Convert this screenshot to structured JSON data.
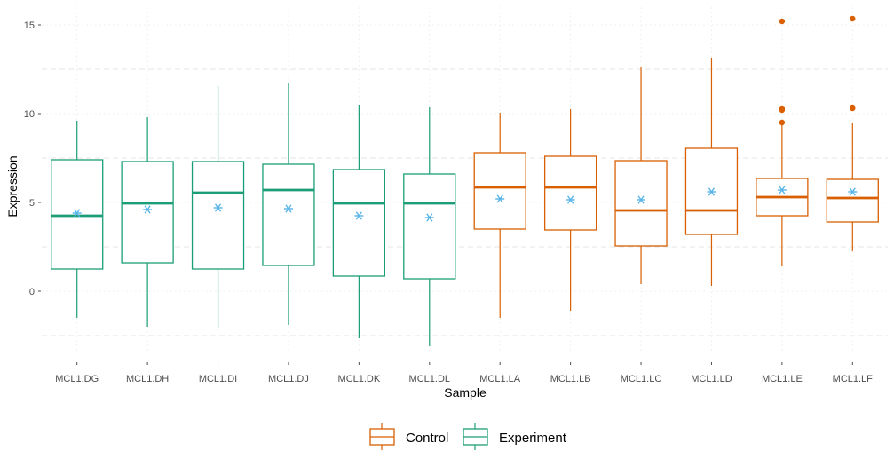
{
  "chart_data": {
    "type": "boxplot",
    "xlabel": "Sample",
    "ylabel": "Expression",
    "ylim": [
      -3.5,
      16
    ],
    "yticks": [
      0,
      5,
      10,
      15
    ],
    "grid": true,
    "legend_position": "bottom",
    "legend": [
      {
        "name": "Control",
        "color": "#D95F02"
      },
      {
        "name": "Experiment",
        "color": "#1B9E77"
      }
    ],
    "mean_marker_color": "#56B4E9",
    "mean_marker_symbol": "*",
    "categories": [
      "MCL1.DG",
      "MCL1.DH",
      "MCL1.DI",
      "MCL1.DJ",
      "MCL1.DK",
      "MCL1.DL",
      "MCL1.LA",
      "MCL1.LB",
      "MCL1.LC",
      "MCL1.LD",
      "MCL1.LE",
      "MCL1.LF"
    ],
    "boxes": [
      {
        "sample": "MCL1.DG",
        "group": "Experiment",
        "whisker_low": -1.5,
        "q1": 1.25,
        "median": 4.25,
        "q3": 7.4,
        "whisker_high": 9.6,
        "mean": 4.4,
        "outliers": []
      },
      {
        "sample": "MCL1.DH",
        "group": "Experiment",
        "whisker_low": -2.0,
        "q1": 1.6,
        "median": 4.95,
        "q3": 7.3,
        "whisker_high": 9.8,
        "mean": 4.6,
        "outliers": []
      },
      {
        "sample": "MCL1.DI",
        "group": "Experiment",
        "whisker_low": -2.05,
        "q1": 1.25,
        "median": 5.55,
        "q3": 7.3,
        "whisker_high": 11.55,
        "mean": 4.7,
        "outliers": []
      },
      {
        "sample": "MCL1.DJ",
        "group": "Experiment",
        "whisker_low": -1.9,
        "q1": 1.45,
        "median": 5.7,
        "q3": 7.15,
        "whisker_high": 11.7,
        "mean": 4.65,
        "outliers": []
      },
      {
        "sample": "MCL1.DK",
        "group": "Experiment",
        "whisker_low": -2.65,
        "q1": 0.85,
        "median": 4.95,
        "q3": 6.85,
        "whisker_high": 10.5,
        "mean": 4.25,
        "outliers": []
      },
      {
        "sample": "MCL1.DL",
        "group": "Experiment",
        "whisker_low": -3.1,
        "q1": 0.7,
        "median": 4.95,
        "q3": 6.6,
        "whisker_high": 10.4,
        "mean": 4.15,
        "outliers": []
      },
      {
        "sample": "MCL1.LA",
        "group": "Control",
        "whisker_low": -1.5,
        "q1": 3.5,
        "median": 5.85,
        "q3": 7.8,
        "whisker_high": 10.05,
        "mean": 5.2,
        "outliers": []
      },
      {
        "sample": "MCL1.LB",
        "group": "Control",
        "whisker_low": -1.1,
        "q1": 3.45,
        "median": 5.85,
        "q3": 7.6,
        "whisker_high": 10.25,
        "mean": 5.15,
        "outliers": []
      },
      {
        "sample": "MCL1.LC",
        "group": "Control",
        "whisker_low": 0.4,
        "q1": 2.55,
        "median": 4.55,
        "q3": 7.35,
        "whisker_high": 12.65,
        "mean": 5.15,
        "outliers": []
      },
      {
        "sample": "MCL1.LD",
        "group": "Control",
        "whisker_low": 0.3,
        "q1": 3.2,
        "median": 4.55,
        "q3": 8.05,
        "whisker_high": 13.15,
        "mean": 5.6,
        "outliers": []
      },
      {
        "sample": "MCL1.LE",
        "group": "Control",
        "whisker_low": 1.4,
        "q1": 4.25,
        "median": 5.3,
        "q3": 6.35,
        "whisker_high": 9.5,
        "mean": 5.7,
        "outliers": [
          9.5,
          10.2,
          10.3,
          15.2
        ]
      },
      {
        "sample": "MCL1.LF",
        "group": "Control",
        "whisker_low": 2.25,
        "q1": 3.9,
        "median": 5.25,
        "q3": 6.3,
        "whisker_high": 9.45,
        "mean": 5.6,
        "outliers": [
          10.3,
          10.35,
          15.35
        ]
      }
    ]
  }
}
